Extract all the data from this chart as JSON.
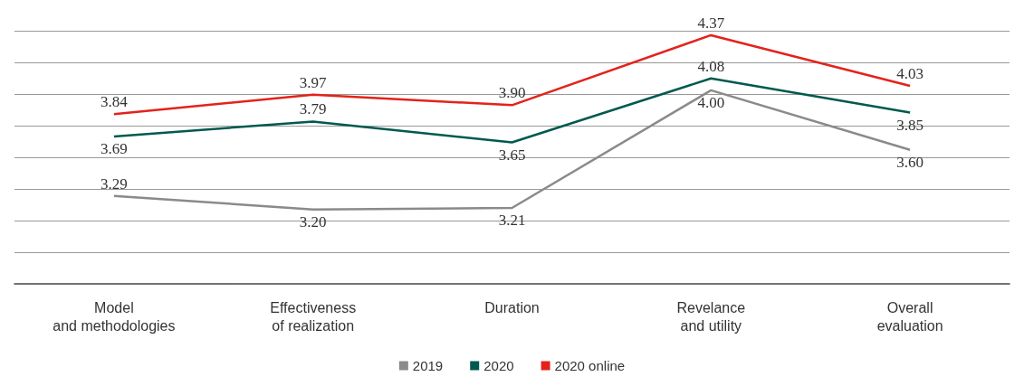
{
  "chart_data": {
    "type": "line",
    "categories": [
      "Model\nand methodologies",
      "Effectiveness\nof realization",
      "Duration",
      "Revelance\nand utility",
      "Overall\nevaluation"
    ],
    "series": [
      {
        "name": "2019",
        "color": "#8a8a8a",
        "values": [
          3.29,
          3.2,
          3.21,
          4.0,
          3.6
        ],
        "value_labels": [
          "3.29",
          "3.20",
          "3.21",
          "4.00",
          "3.60"
        ]
      },
      {
        "name": "2020",
        "color": "#00594f",
        "values": [
          3.69,
          3.79,
          3.65,
          4.08,
          3.85
        ],
        "value_labels": [
          "3.69",
          "3.79",
          "3.65",
          "4.08",
          "3.85"
        ]
      },
      {
        "name": "2020 online",
        "color": "#e3231b",
        "values": [
          3.84,
          3.97,
          3.9,
          4.37,
          4.03
        ],
        "value_labels": [
          "3.84",
          "3.97",
          "3.90",
          "4.37",
          "4.03"
        ]
      }
    ],
    "ylim": [
      2.7,
      4.4
    ],
    "yticks": [
      {
        "value": 2.9125,
        "label": null
      },
      {
        "value": 3.125,
        "label": null
      },
      {
        "value": 3.3375,
        "label": null
      },
      {
        "value": 3.55,
        "label": null
      },
      {
        "value": 3.7625,
        "label": null
      },
      {
        "value": 3.975,
        "label": null
      },
      {
        "value": 4.1875,
        "label": null
      },
      {
        "value": 4.4,
        "label": null
      }
    ],
    "tick_labels": "x",
    "grid": "y",
    "legend": "bottom",
    "marker": "none",
    "line_style": "solid"
  }
}
